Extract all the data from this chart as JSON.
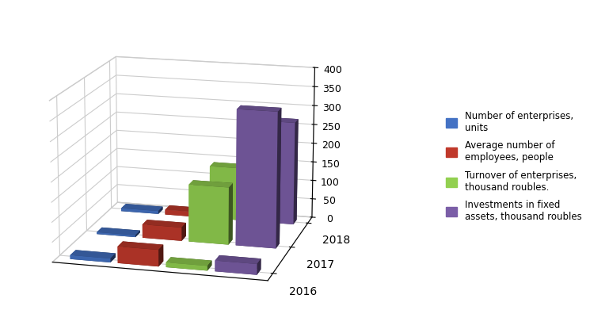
{
  "years": [
    "2016",
    "2017",
    "2018"
  ],
  "series": [
    {
      "label": "Number of enterprises,\nunits",
      "color": "#4472C4",
      "values": [
        10,
        5,
        8
      ]
    },
    {
      "label": "Average number of\nemployees, people",
      "color": "#C0392B",
      "values": [
        42,
        35,
        13
      ]
    },
    {
      "label": "Turnover of enterprises,\nthousand roubles.",
      "color": "#92D050",
      "values": [
        12,
        148,
        140
      ]
    },
    {
      "label": "Investments in fixed\nassets, thousand roubles",
      "color": "#7B5EA7",
      "values": [
        27,
        348,
        270
      ]
    }
  ],
  "ylim": [
    0,
    400
  ],
  "yticks": [
    0,
    50,
    100,
    150,
    200,
    250,
    300,
    350,
    400
  ],
  "background_color": "#ffffff",
  "legend_fontsize": 8.5,
  "tick_fontsize": 9,
  "year_label_fontsize": 10
}
